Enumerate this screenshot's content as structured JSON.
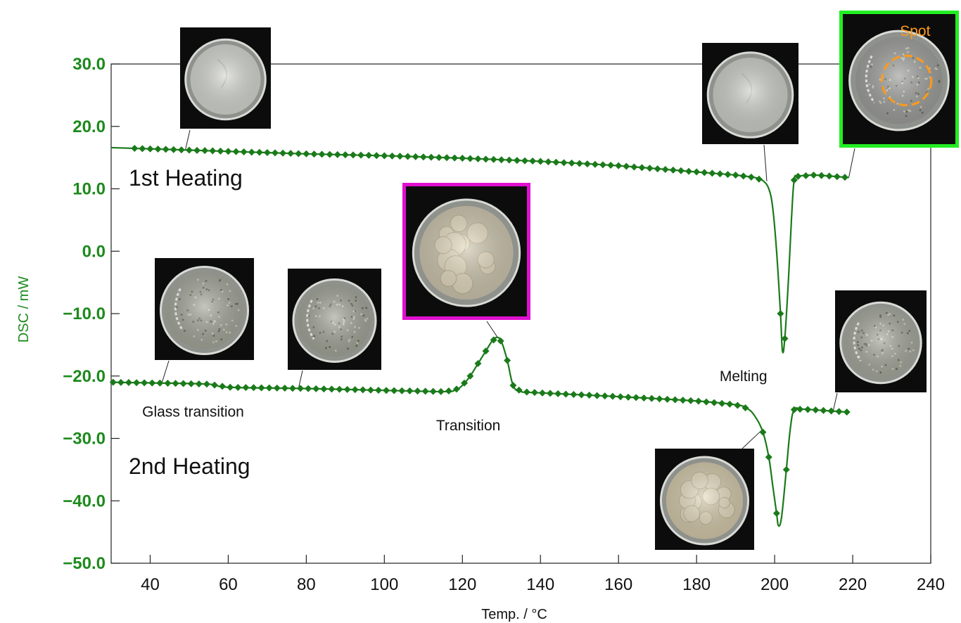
{
  "chart_data": {
    "type": "line",
    "title": "",
    "xlabel": "Temp. / °C",
    "ylabel": "DSC / mW",
    "xlim": [
      30,
      240
    ],
    "ylim": [
      -50,
      30
    ],
    "x_ticks": [
      40,
      60,
      80,
      100,
      120,
      140,
      160,
      180,
      200,
      220,
      240
    ],
    "y_ticks": [
      {
        "value": 30,
        "label": "30.0"
      },
      {
        "value": 20,
        "label": "20.0"
      },
      {
        "value": 10,
        "label": "10.0"
      },
      {
        "value": 0,
        "label": "0.0"
      },
      {
        "value": -10,
        "label": "−10.0"
      },
      {
        "value": -20,
        "label": "−20.0"
      },
      {
        "value": -30,
        "label": "−30.0"
      },
      {
        "value": -40,
        "label": "−40.0"
      },
      {
        "value": -50,
        "label": "−50.0"
      }
    ],
    "grid": false,
    "line_color": "#1a7a1a",
    "series": [
      {
        "points": [
          [
            30,
            16.6
          ],
          [
            50,
            16.2
          ],
          [
            80,
            15.6
          ],
          [
            100,
            15.3
          ],
          [
            120,
            14.9
          ],
          [
            140,
            14.4
          ],
          [
            160,
            13.7
          ],
          [
            180,
            12.7
          ],
          [
            190,
            12.2
          ],
          [
            195,
            11.8
          ],
          [
            197,
            11.3
          ],
          [
            198.5,
            10.0
          ],
          [
            199.5,
            7.0
          ],
          [
            200.5,
            0.0
          ],
          [
            201.5,
            -10.0
          ],
          [
            202,
            -16.0
          ],
          [
            202.6,
            -14.0
          ],
          [
            203.5,
            -5.0
          ],
          [
            204.3,
            5.0
          ],
          [
            205,
            11.4
          ],
          [
            206,
            12.0
          ],
          [
            210,
            12.2
          ],
          [
            215,
            12.0
          ],
          [
            219,
            11.8
          ]
        ]
      },
      {
        "points": [
          [
            30,
            -21.0
          ],
          [
            40,
            -21.1
          ],
          [
            55,
            -21.3
          ],
          [
            60,
            -21.8
          ],
          [
            80,
            -22.0
          ],
          [
            100,
            -22.3
          ],
          [
            115,
            -22.5
          ],
          [
            118,
            -22.3
          ],
          [
            120,
            -21.5
          ],
          [
            122,
            -20.0
          ],
          [
            124,
            -18.0
          ],
          [
            126,
            -16.0
          ],
          [
            127.5,
            -14.5
          ],
          [
            128.8,
            -13.8
          ],
          [
            130,
            -14.5
          ],
          [
            131.5,
            -17.5
          ],
          [
            133,
            -21.5
          ],
          [
            135,
            -22.5
          ],
          [
            140,
            -22.7
          ],
          [
            160,
            -23.3
          ],
          [
            180,
            -24.0
          ],
          [
            190,
            -24.6
          ],
          [
            193,
            -25.2
          ],
          [
            195,
            -26.5
          ],
          [
            197,
            -29.0
          ],
          [
            198.5,
            -33.0
          ],
          [
            199.5,
            -37.5
          ],
          [
            200.5,
            -42.0
          ],
          [
            201,
            -44.0
          ],
          [
            201.8,
            -42.5
          ],
          [
            203,
            -35.0
          ],
          [
            204,
            -28.5
          ],
          [
            205,
            -25.4
          ],
          [
            207,
            -25.3
          ],
          [
            212,
            -25.5
          ],
          [
            219,
            -25.8
          ]
        ]
      }
    ],
    "annotations": [
      {
        "text": "1st Heating",
        "x": 34.5,
        "y": 10.5
      },
      {
        "text": "2nd Heating",
        "x": 34.5,
        "y": -35.7
      },
      {
        "text": "Glass transition",
        "x": 51,
        "y": -26.5
      },
      {
        "text": "Transition",
        "x": 121.5,
        "y": -28.7
      },
      {
        "text": "Melting",
        "x": 192,
        "y": -20.8
      },
      {
        "text": "Spot",
        "x": 236,
        "y": 34.5
      }
    ]
  },
  "photos": [
    {
      "name": "photo-1st-heating-start",
      "label": "",
      "frame": "none",
      "fill": "#d6d8d2",
      "points_to": [
        49,
        16.2
      ],
      "style": "smooth"
    },
    {
      "name": "photo-1st-heating-before-melt",
      "label": "",
      "frame": "none",
      "fill": "#cfd1cb",
      "points_to": [
        198,
        11.2
      ],
      "style": "smooth"
    },
    {
      "name": "photo-1st-heating-after-melt",
      "label": "Spot",
      "frame": "#22ee22",
      "fill": "#9fa09c",
      "points_to": [
        219,
        11.8
      ],
      "style": "spot"
    },
    {
      "name": "photo-glass-transition-start",
      "label": "",
      "frame": "none",
      "fill": "#a6a89c",
      "points_to": [
        43,
        -21.1
      ],
      "style": "speckle"
    },
    {
      "name": "photo-glass-transition-end",
      "label": "",
      "frame": "none",
      "fill": "#a4a69a",
      "points_to": [
        78,
        -22.0
      ],
      "style": "speckle"
    },
    {
      "name": "photo-transition-peak",
      "label": "",
      "frame": "#e010d0",
      "fill": "#cfc7b0",
      "points_to": [
        129,
        -13.8
      ],
      "style": "crystals"
    },
    {
      "name": "photo-2nd-melting",
      "label": "",
      "frame": "none",
      "fill": "#d6cbad",
      "points_to": [
        197,
        -28.5
      ],
      "style": "crystals"
    },
    {
      "name": "photo-2nd-heating-end",
      "label": "",
      "frame": "none",
      "fill": "#a8aa9e",
      "points_to": [
        215,
        -25.6
      ],
      "style": "speckle"
    }
  ]
}
